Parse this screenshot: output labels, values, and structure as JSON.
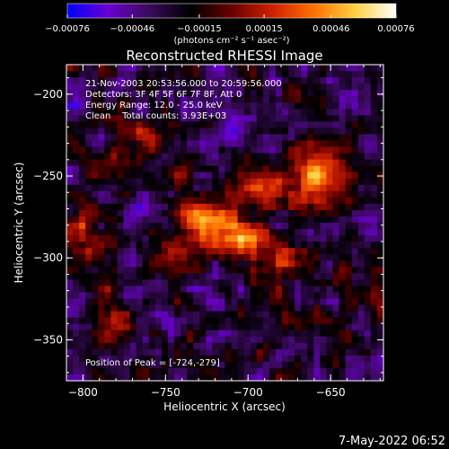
{
  "chart_data": {
    "type": "heatmap",
    "title": "Reconstructed RHESSI Image",
    "xlabel": "Heliocentric X (arcsec)",
    "ylabel": "Heliocentric Y (arcsec)",
    "xlim": [
      -810,
      -618
    ],
    "ylim": [
      -375,
      -182
    ],
    "xticks": [
      -800,
      -750,
      -700,
      -650
    ],
    "yticks": [
      -200,
      -250,
      -300,
      -350
    ],
    "xtick_labels": [
      "−800",
      "−750",
      "−700",
      "−650"
    ],
    "ytick_labels": [
      "−200",
      "−250",
      "−300",
      "−350"
    ],
    "colorbar": {
      "range": [
        -0.00076,
        0.00076
      ],
      "ticks": [
        -0.00076,
        -0.00046,
        -0.00015,
        0.00015,
        0.00046,
        0.00076
      ],
      "tick_labels": [
        "−0.00076",
        "−0.00046",
        "−0.00015",
        "0.00015",
        "0.00046",
        "0.00076"
      ],
      "units_label": "(photons cm⁻² s⁻¹ asec⁻²)",
      "colormap": [
        "#0000ff",
        "#6a00d0",
        "#3a0a5c",
        "#000000",
        "#6a0000",
        "#d02000",
        "#ff7000",
        "#ffd040",
        "#ffffff"
      ]
    },
    "info_lines": [
      "21-Nov-2003 20:53:56.000 to 20:59:56.000",
      "Detectors: 3F 4F 5F 6F 7F 8F, Att 0",
      "Energy Range: 12.0 - 25.0 keV",
      "Clean    Total counts: 3.93E+03"
    ],
    "peak_label": "Position of Peak = [-724,-279]",
    "peak": [
      -724,
      -279
    ],
    "sources": [
      {
        "x": -724,
        "y": -279,
        "amp": 0.00076,
        "sx": 11,
        "sy": 9
      },
      {
        "x": -705,
        "y": -288,
        "amp": 0.00058,
        "sx": 10,
        "sy": 9
      },
      {
        "x": -655,
        "y": -250,
        "amp": 0.00064,
        "sx": 10,
        "sy": 14
      },
      {
        "x": -690,
        "y": -255,
        "amp": 0.00048,
        "sx": 14,
        "sy": 8
      },
      {
        "x": -678,
        "y": -300,
        "amp": 0.0004,
        "sx": 12,
        "sy": 10
      },
      {
        "x": -760,
        "y": -225,
        "amp": 0.00033,
        "sx": 12,
        "sy": 12
      },
      {
        "x": -800,
        "y": -290,
        "amp": 0.00036,
        "sx": 8,
        "sy": 16
      },
      {
        "x": -782,
        "y": -335,
        "amp": 0.00028,
        "sx": 10,
        "sy": 12
      },
      {
        "x": -780,
        "y": -245,
        "amp": 0.00022,
        "sx": 8,
        "sy": 8
      },
      {
        "x": -745,
        "y": -300,
        "amp": 0.00025,
        "sx": 10,
        "sy": 8
      },
      {
        "x": -700,
        "y": -335,
        "amp": 0.00024,
        "sx": 14,
        "sy": 10
      },
      {
        "x": -640,
        "y": -325,
        "amp": 0.00018,
        "sx": 8,
        "sy": 10
      },
      {
        "x": -670,
        "y": -200,
        "amp": 0.00017,
        "sx": 10,
        "sy": 8
      }
    ]
  },
  "timestamp": "7-May-2022 06:52"
}
